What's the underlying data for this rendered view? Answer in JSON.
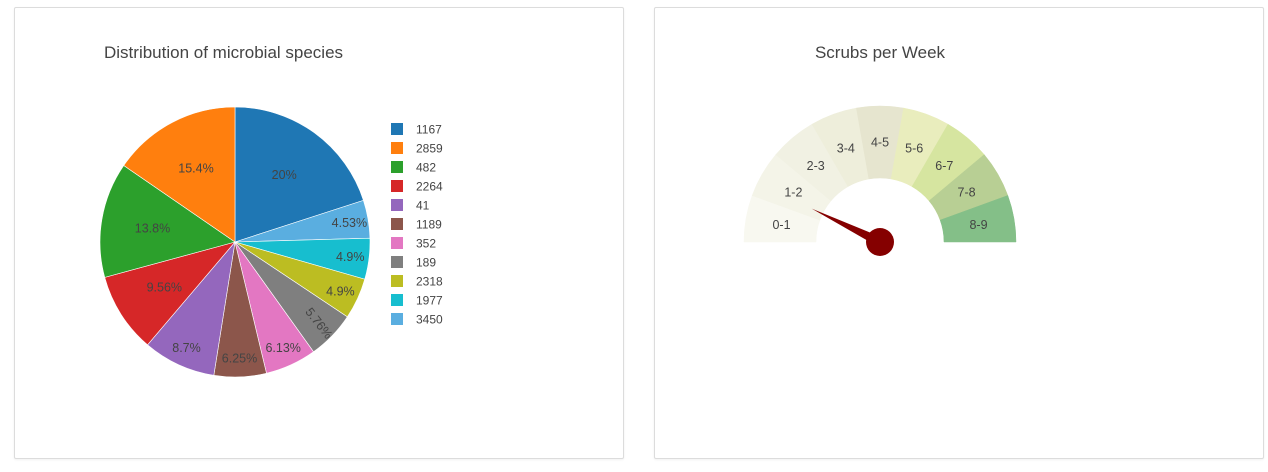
{
  "chart_data": [
    {
      "type": "pie",
      "title": "Distribution of microbial species",
      "legend_position": "right",
      "sort": false,
      "slices": [
        {
          "label": "1167",
          "percent": 20,
          "text": "20%",
          "color": "#1f77b4"
        },
        {
          "label": "3450",
          "percent": 4.53,
          "text": "4.53%",
          "color": "#5aaee0"
        },
        {
          "label": "1977",
          "percent": 4.9,
          "text": "4.9%",
          "color": "#17becf"
        },
        {
          "label": "2318",
          "percent": 4.9,
          "text": "4.9%",
          "color": "#bcbd22"
        },
        {
          "label": "189",
          "percent": 5.76,
          "text": "5.76%",
          "color": "#7f7f7f"
        },
        {
          "label": "352",
          "percent": 6.13,
          "text": "6.13%",
          "color": "#e377c2"
        },
        {
          "label": "1189",
          "percent": 6.25,
          "text": "6.25%",
          "color": "#8c564b"
        },
        {
          "label": "41",
          "percent": 8.7,
          "text": "8.7%",
          "color": "#9467bd"
        },
        {
          "label": "2264",
          "percent": 9.56,
          "text": "9.56%",
          "color": "#d62728"
        },
        {
          "label": "482",
          "percent": 13.8,
          "text": "13.8%",
          "color": "#2ca02c"
        },
        {
          "label": "2859",
          "percent": 15.4,
          "text": "15.4%",
          "color": "#ff7f0e"
        }
      ],
      "legend_order": [
        "1167",
        "2859",
        "482",
        "2264",
        "41",
        "1189",
        "352",
        "189",
        "2318",
        "1977",
        "3450"
      ]
    },
    {
      "type": "gauge",
      "title": "Scrubs per Week",
      "range": [
        0,
        9
      ],
      "needle_value": 1.3,
      "needle_color": "#850000",
      "bands": [
        {
          "label": "0-1",
          "color": "#f8f8f0"
        },
        {
          "label": "1-2",
          "color": "#f4f4e8"
        },
        {
          "label": "2-3",
          "color": "#f1f1e3"
        },
        {
          "label": "3-4",
          "color": "#eeeedb"
        },
        {
          "label": "4-5",
          "color": "#e6e5cf"
        },
        {
          "label": "5-6",
          "color": "#e9edbd"
        },
        {
          "label": "6-7",
          "color": "#d6e5a0"
        },
        {
          "label": "7-8",
          "color": "#b8cf94"
        },
        {
          "label": "8-9",
          "color": "#84bf88"
        }
      ]
    }
  ]
}
